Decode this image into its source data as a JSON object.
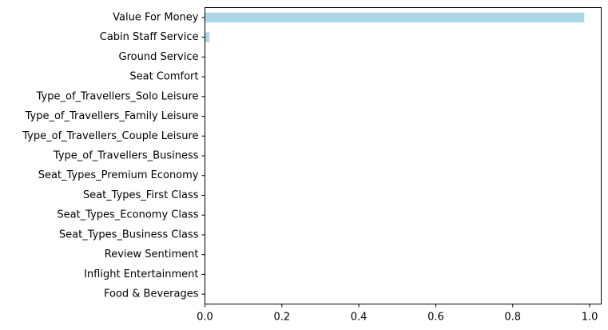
{
  "chart_data": {
    "type": "bar",
    "orientation": "horizontal",
    "categories": [
      "Value For Money",
      "Cabin Staff Service",
      "Ground Service",
      "Seat Comfort",
      "Type_of_Travellers_Solo Leisure",
      "Type_of_Travellers_Family Leisure",
      "Type_of_Travellers_Couple Leisure",
      "Type_of_Travellers_Business",
      "Seat_Types_Premium Economy",
      "Seat_Types_First Class",
      "Seat_Types_Economy Class",
      "Seat_Types_Business Class",
      "Review Sentiment",
      "Inflight Entertainment",
      "Food & Beverages"
    ],
    "values": [
      0.986,
      0.012,
      0,
      0,
      0,
      0,
      0,
      0,
      0,
      0,
      0,
      0,
      0,
      0,
      0
    ],
    "xlim": [
      0,
      1.03
    ],
    "xticks": [
      "0.0",
      "0.2",
      "0.4",
      "0.6",
      "0.8",
      "1.0"
    ],
    "xtick_values": [
      0,
      0.2,
      0.4,
      0.6,
      0.8,
      1.0
    ],
    "bar_color": "#add8e6",
    "title": "",
    "xlabel": "",
    "ylabel": "",
    "grid": false,
    "legend": "none"
  }
}
